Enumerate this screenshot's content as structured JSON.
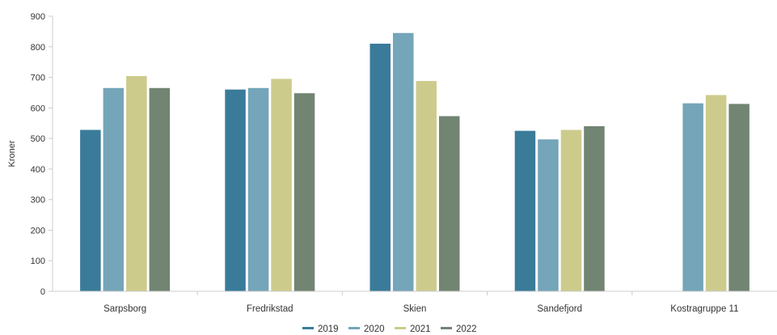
{
  "chart_data": {
    "type": "bar",
    "ylabel": "Kroner",
    "xlabel": "",
    "ylim": [
      0,
      900
    ],
    "yticks": [
      0,
      100,
      200,
      300,
      400,
      500,
      600,
      700,
      800,
      900
    ],
    "categories": [
      "Sarpsborg",
      "Fredrikstad",
      "Skien",
      "Sandefjord",
      "Kostragruppe 11"
    ],
    "series": [
      {
        "name": "2019",
        "color": "#3a7b9a",
        "values": [
          528,
          660,
          810,
          525,
          null
        ]
      },
      {
        "name": "2020",
        "color": "#74a5b9",
        "values": [
          665,
          665,
          845,
          497,
          615
        ]
      },
      {
        "name": "2021",
        "color": "#cdcb8c",
        "values": [
          704,
          695,
          688,
          528,
          642
        ]
      },
      {
        "name": "2022",
        "color": "#728472",
        "values": [
          665,
          648,
          573,
          540,
          613
        ]
      }
    ],
    "legend_position": "bottom-center",
    "grid": false
  }
}
